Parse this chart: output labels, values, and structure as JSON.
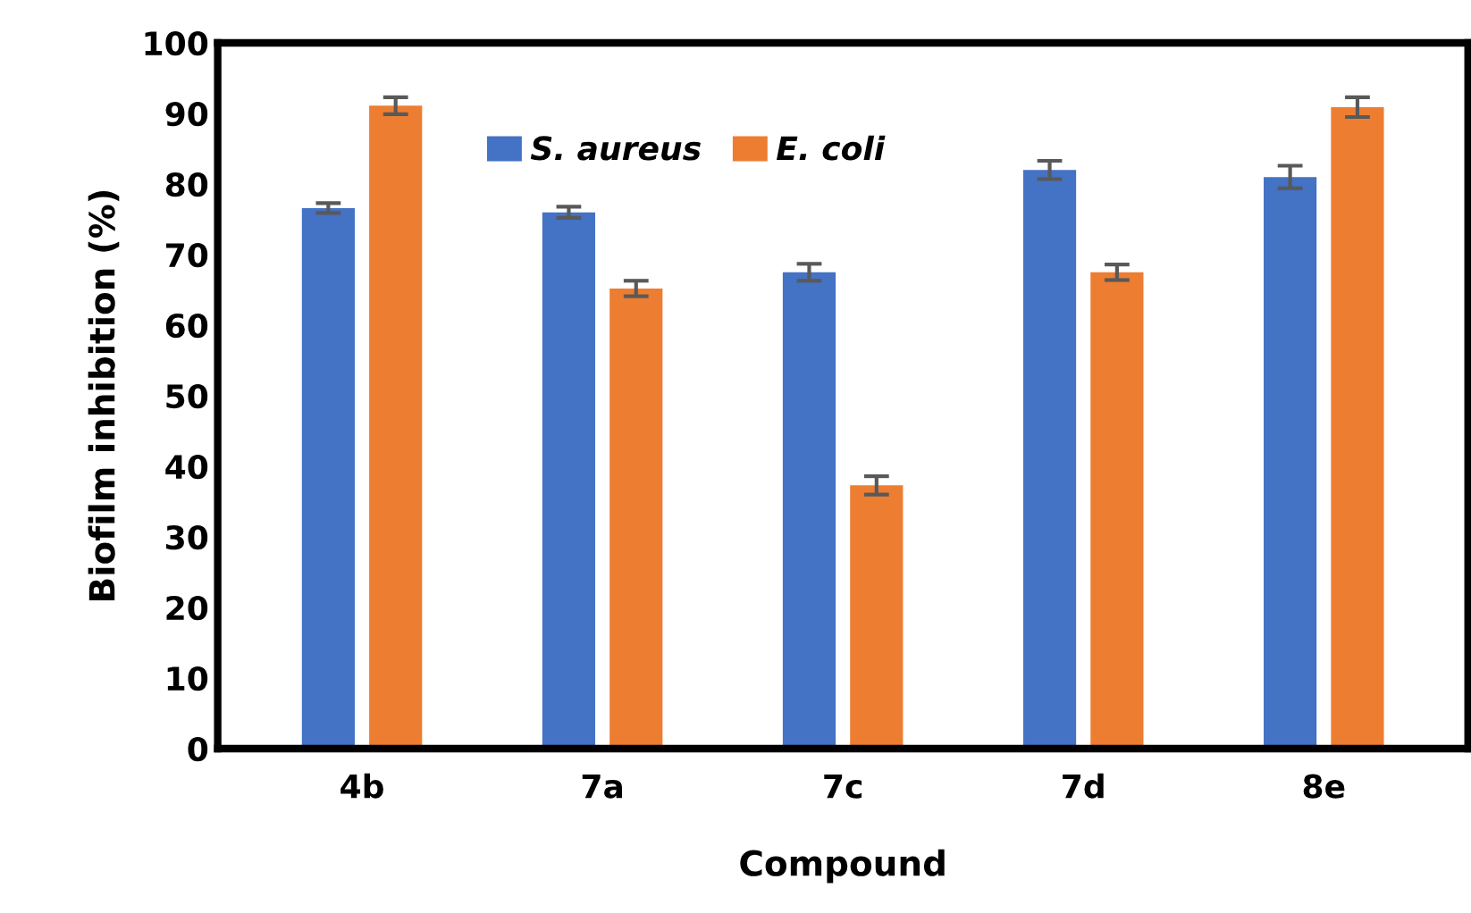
{
  "chart_data": {
    "type": "bar",
    "xlabel": "Compound",
    "ylabel": "Biofilm inhibition (%)",
    "categories": [
      "4b",
      "7a",
      "7c",
      "7d",
      "8e"
    ],
    "series": [
      {
        "name": "S. aureus",
        "color": "#4472c4",
        "values": [
          76.6,
          76.0,
          67.5,
          82.0,
          81.0
        ],
        "errors": [
          0.7,
          0.8,
          1.2,
          1.3,
          1.6
        ]
      },
      {
        "name": "E. coli",
        "color": "#ed7d31",
        "values": [
          91.1,
          65.2,
          37.3,
          67.5,
          90.9
        ],
        "errors": [
          1.2,
          1.1,
          1.3,
          1.1,
          1.4
        ]
      }
    ],
    "ylim": [
      0,
      100
    ],
    "yticks": [
      0,
      10,
      20,
      30,
      40,
      50,
      60,
      70,
      80,
      90,
      100
    ],
    "grid": false,
    "legend": "top"
  }
}
